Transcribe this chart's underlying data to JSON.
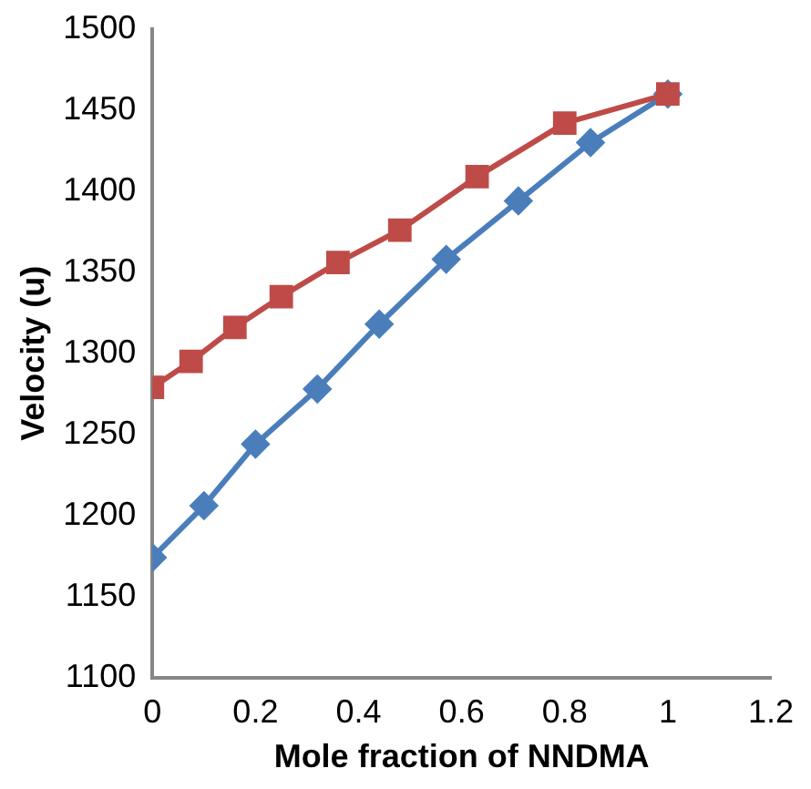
{
  "chart_data": {
    "type": "line",
    "xlabel": "Mole fraction of NNDMA",
    "ylabel": "Velocity (u)",
    "xlim": [
      0,
      1.2
    ],
    "xticks": [
      0,
      0.2,
      0.4,
      0.6,
      0.8,
      1,
      1.2
    ],
    "ylim": [
      1100,
      1500
    ],
    "yticks": [
      1100,
      1150,
      1200,
      1250,
      1300,
      1350,
      1400,
      1450,
      1500
    ],
    "grid": false,
    "legend": false,
    "series": [
      {
        "color": "#be4b48",
        "marker": "square",
        "x": [
          0,
          0.075,
          0.16,
          0.25,
          0.36,
          0.48,
          0.63,
          0.8,
          1.0
        ],
        "values": [
          1279,
          1295,
          1316,
          1335,
          1356,
          1376,
          1409,
          1442,
          1460
        ]
      },
      {
        "color": "#4a7ebb",
        "marker": "diamond",
        "x": [
          0,
          0.1,
          0.2,
          0.32,
          0.44,
          0.57,
          0.71,
          0.85,
          1.0
        ],
        "values": [
          1174,
          1206,
          1244,
          1278,
          1318,
          1358,
          1394,
          1430,
          1460
        ]
      }
    ]
  }
}
